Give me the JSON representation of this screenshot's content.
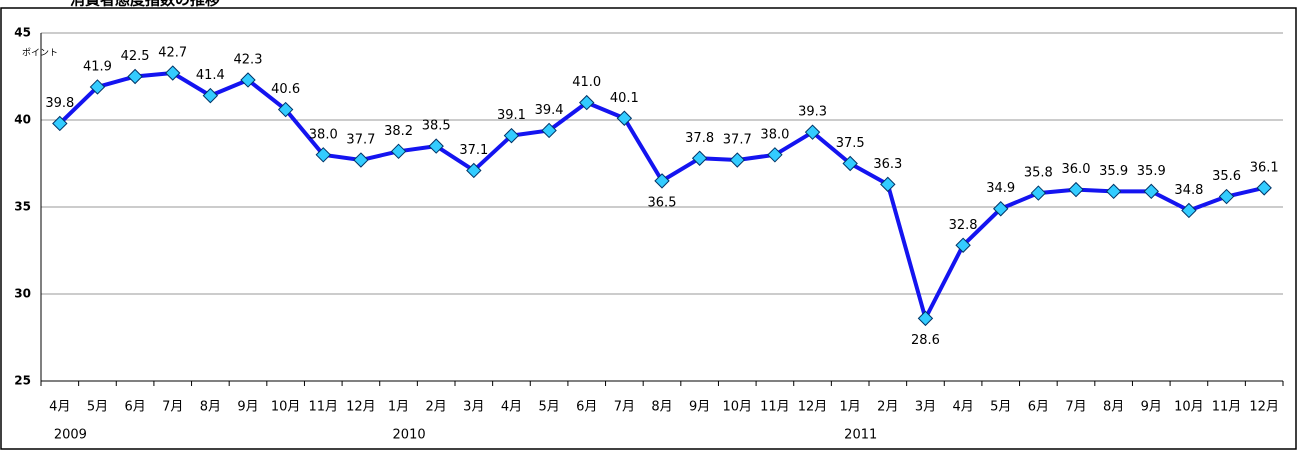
{
  "chart_data": {
    "type": "line",
    "title": "消費者態度指数の推移",
    "y_unit": "ポイント",
    "categories": [
      "4月",
      "5月",
      "6月",
      "7月",
      "8月",
      "9月",
      "10月",
      "11月",
      "12月",
      "1月",
      "2月",
      "3月",
      "4月",
      "5月",
      "6月",
      "7月",
      "8月",
      "9月",
      "10月",
      "11月",
      "12月",
      "1月",
      "2月",
      "3月",
      "4月",
      "5月",
      "6月",
      "7月",
      "8月",
      "9月",
      "10月",
      "11月",
      "12月"
    ],
    "years": [
      "2009",
      null,
      null,
      null,
      null,
      null,
      null,
      null,
      null,
      "2010",
      null,
      null,
      null,
      null,
      null,
      null,
      null,
      null,
      null,
      null,
      null,
      "2011",
      null,
      null,
      null,
      null,
      null,
      null,
      null,
      null,
      null,
      null,
      null
    ],
    "series": [
      {
        "name": "消費者態度指数",
        "color": "#1414f0",
        "marker_color": "#33ccff",
        "values": [
          39.8,
          41.9,
          42.5,
          42.7,
          41.4,
          42.3,
          40.6,
          38.0,
          37.7,
          38.2,
          38.5,
          37.1,
          39.1,
          39.4,
          41.0,
          40.1,
          36.5,
          37.8,
          37.7,
          38.0,
          39.3,
          37.5,
          36.3,
          28.6,
          32.8,
          34.9,
          35.8,
          36.0,
          35.9,
          35.9,
          34.8,
          35.6,
          36.1
        ],
        "value_labels": [
          "39.8",
          "41.9",
          "42.5",
          "42.7",
          "41.4",
          "42.3",
          "40.6",
          "38.0",
          "37.7",
          "38.2",
          "38.5",
          "37.1",
          "39.1",
          "39.4",
          "41.0",
          "40.1",
          "36.5",
          "37.8",
          "37.7",
          "38.0",
          "39.3",
          "37.5",
          "36.3",
          "28.6",
          "32.8",
          "34.9",
          "35.8",
          "36.0",
          "35.9",
          "35.9",
          "34.8",
          "35.6",
          "36.1"
        ]
      }
    ],
    "ylim": [
      25,
      45
    ],
    "yticks": [
      25,
      30,
      35,
      40,
      45
    ],
    "grid": true
  }
}
